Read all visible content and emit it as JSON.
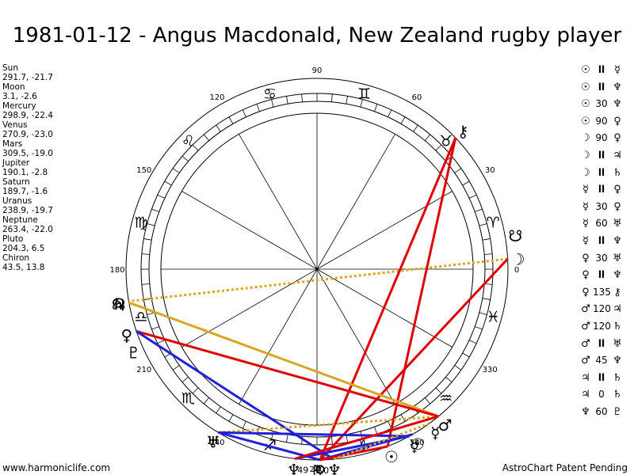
{
  "title": "1981-01-12 - Angus Macdonald, New Zealand rugby player",
  "footer": {
    "left": "www.harmoniclife.com",
    "right": "AstroChart Patent Pending"
  },
  "colors": {
    "red": "#e00000",
    "blue": "#2020dd",
    "gold": "#daa520",
    "black": "#000000"
  },
  "chart_data": {
    "type": "astrology-wheel",
    "ascendant": 180,
    "degree_labels": [
      "0",
      "30",
      "60",
      "90",
      "120",
      "150",
      "180",
      "210",
      "240",
      "270",
      "300",
      "330"
    ],
    "signs": [
      {
        "name": "aries",
        "glyph": "♈"
      },
      {
        "name": "taurus",
        "glyph": "♉"
      },
      {
        "name": "gemini",
        "glyph": "♊"
      },
      {
        "name": "cancer",
        "glyph": "♋"
      },
      {
        "name": "leo",
        "glyph": "♌"
      },
      {
        "name": "virgo",
        "glyph": "♍"
      },
      {
        "name": "libra",
        "glyph": "♎"
      },
      {
        "name": "scorpio",
        "glyph": "♏"
      },
      {
        "name": "sagittarius",
        "glyph": "♐"
      },
      {
        "name": "capricorn",
        "glyph": "♑"
      },
      {
        "name": "aquarius",
        "glyph": "♒"
      },
      {
        "name": "pisces",
        "glyph": "♓"
      }
    ],
    "planets": [
      {
        "name": "Sun",
        "glyph": "☉",
        "position": "291.7, -21.7",
        "lon": 291.7
      },
      {
        "name": "Moon",
        "glyph": "☽",
        "position": "3.1, -2.6",
        "lon": 3.1
      },
      {
        "name": "Mercury",
        "glyph": "☿",
        "position": "298.9, -22.4",
        "lon": 298.9
      },
      {
        "name": "Venus",
        "glyph": "♀",
        "position": "270.9, -23.0",
        "lon": 270.9
      },
      {
        "name": "Mars",
        "glyph": "♂",
        "position": "309.5, -19.0",
        "lon": 309.5
      },
      {
        "name": "Jupiter",
        "glyph": "♃",
        "position": "190.1, -2.8",
        "lon": 190.1
      },
      {
        "name": "Saturn",
        "glyph": "♄",
        "position": "189.7, -1.6",
        "lon": 189.7
      },
      {
        "name": "Uranus",
        "glyph": "♅",
        "position": "238.9, -19.7",
        "lon": 238.9
      },
      {
        "name": "Neptune",
        "glyph": "♆",
        "position": "263.4, -22.0",
        "lon": 263.4
      },
      {
        "name": "Pluto",
        "glyph": "♇",
        "position": "204.3, 6.5",
        "lon": 204.3
      },
      {
        "name": "Chiron",
        "glyph": "⚷",
        "position": "43.5, 13.8",
        "lon": 43.5
      }
    ],
    "chart_points": [
      {
        "name": "north-node",
        "glyph": "☊",
        "lon": 189.7
      },
      {
        "name": "south-node",
        "glyph": "☋",
        "lon": 9.7
      },
      {
        "name": "sun-mirror",
        "glyph": "☉",
        "lon": 300
      },
      {
        "name": "mercury-mirror",
        "glyph": "☿",
        "lon": 306
      },
      {
        "name": "venus-mirror",
        "glyph": "♀",
        "lon": 199
      },
      {
        "name": "neptune-mirror",
        "glyph": "♆",
        "lon": 275
      },
      {
        "name": "uranus-mirror",
        "glyph": "♅",
        "lon": 239
      },
      {
        "name": "pluto-mirror",
        "glyph": "♇",
        "lon": 270
      }
    ],
    "label_points": [
      {
        "text": "-9,0",
        "lon": 271
      },
      {
        "text": "49",
        "lon": 266
      }
    ],
    "aspect_lines": [
      {
        "from": 3.1,
        "to": 189.7,
        "color": "gold",
        "dashed": true
      },
      {
        "from": 3.1,
        "to": 270.9,
        "color": "red",
        "dashed": false
      },
      {
        "from": 43.5,
        "to": 270.9,
        "color": "red",
        "dashed": false
      },
      {
        "from": 43.5,
        "to": 291.7,
        "color": "red",
        "dashed": false
      },
      {
        "from": 190.1,
        "to": 309.5,
        "color": "gold",
        "dashed": false
      },
      {
        "from": 199,
        "to": 309.5,
        "color": "red",
        "dashed": false
      },
      {
        "from": 199,
        "to": 275,
        "color": "blue",
        "dashed": false
      },
      {
        "from": 238.9,
        "to": 309.5,
        "color": "gold",
        "dashed": true
      },
      {
        "from": 238.9,
        "to": 298.9,
        "color": "blue",
        "dashed": false
      },
      {
        "from": 238.9,
        "to": 270.9,
        "color": "blue",
        "dashed": false
      },
      {
        "from": 263.4,
        "to": 298.9,
        "color": "blue",
        "dashed": false
      },
      {
        "from": 263.4,
        "to": 309.5,
        "color": "red",
        "dashed": false
      },
      {
        "from": 270.9,
        "to": 300,
        "color": "blue",
        "dashed": false
      },
      {
        "from": 270.9,
        "to": 291.7,
        "color": "red",
        "dashed": false
      },
      {
        "from": 275,
        "to": 306,
        "color": "gold",
        "dashed": true
      }
    ]
  },
  "aspect_list": [
    {
      "p1": "☉",
      "sym": "ll",
      "p2": "☿"
    },
    {
      "p1": "☉",
      "sym": "ll",
      "p2": "♆"
    },
    {
      "p1": "☉",
      "sym": "30",
      "p2": "♆"
    },
    {
      "p1": "☉",
      "sym": "90",
      "p2": "♀"
    },
    {
      "p1": "☽",
      "sym": "90",
      "p2": "♀"
    },
    {
      "p1": "☽",
      "sym": "ll",
      "p2": "♃"
    },
    {
      "p1": "☽",
      "sym": "ll",
      "p2": "♄"
    },
    {
      "p1": "☿",
      "sym": "ll",
      "p2": "♀"
    },
    {
      "p1": "☿",
      "sym": "30",
      "p2": "♀"
    },
    {
      "p1": "☿",
      "sym": "60",
      "p2": "♅"
    },
    {
      "p1": "☿",
      "sym": "ll",
      "p2": "♆"
    },
    {
      "p1": "♀",
      "sym": "30",
      "p2": "♅"
    },
    {
      "p1": "♀",
      "sym": "ll",
      "p2": "♆"
    },
    {
      "p1": "♀",
      "sym": "135",
      "p2": "⚷"
    },
    {
      "p1": "♂",
      "sym": "120",
      "p2": "♃"
    },
    {
      "p1": "♂",
      "sym": "120",
      "p2": "♄"
    },
    {
      "p1": "♂",
      "sym": "ll",
      "p2": "♅"
    },
    {
      "p1": "♂",
      "sym": "45",
      "p2": "♆"
    },
    {
      "p1": "♃",
      "sym": "ll",
      "p2": "♄"
    },
    {
      "p1": "♃",
      "sym": "0",
      "p2": "♄"
    },
    {
      "p1": "♆",
      "sym": "60",
      "p2": "♇"
    }
  ]
}
